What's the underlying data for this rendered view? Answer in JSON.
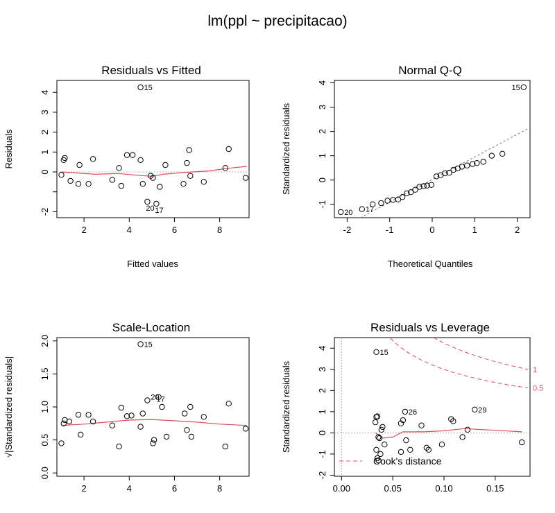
{
  "figure_title": "lm(ppl ~ precipitacao)",
  "colors": {
    "smooth": "#dc4b5a",
    "points": "#000000",
    "reference": "#b0b0b0"
  },
  "chart_data": [
    {
      "id": "rvf",
      "type": "scatter",
      "title": "Residuals vs Fitted",
      "xlabel": "Fitted values",
      "ylabel": "Residuals",
      "xlim": [
        0.8,
        9.3
      ],
      "ylim": [
        -2.3,
        4.6
      ],
      "xticks": [
        2,
        4,
        6,
        8
      ],
      "yticks": [
        -2,
        -1,
        0,
        1,
        2,
        3,
        4
      ],
      "ytick_labels": [
        "-2",
        "",
        "0",
        "1",
        "2",
        "3",
        "4"
      ],
      "ref_line": {
        "orientation": "h",
        "value": 0
      },
      "points": [
        [
          1.0,
          -0.15
        ],
        [
          1.1,
          0.6
        ],
        [
          1.15,
          0.7
        ],
        [
          1.4,
          -0.45
        ],
        [
          1.75,
          -0.6
        ],
        [
          1.8,
          0.35
        ],
        [
          2.2,
          -0.6
        ],
        [
          2.4,
          0.65
        ],
        [
          3.25,
          -0.4
        ],
        [
          3.55,
          0.2
        ],
        [
          3.65,
          -0.7
        ],
        [
          3.9,
          0.85
        ],
        [
          4.15,
          0.85
        ],
        [
          4.5,
          0.6
        ],
        [
          4.6,
          -0.6
        ],
        [
          4.8,
          -1.5
        ],
        [
          4.95,
          -0.2
        ],
        [
          5.05,
          -0.3
        ],
        [
          5.2,
          -1.6
        ],
        [
          5.35,
          -0.75
        ],
        [
          5.6,
          0.35
        ],
        [
          6.4,
          -0.6
        ],
        [
          6.55,
          0.45
        ],
        [
          6.65,
          1.1
        ],
        [
          6.7,
          -0.2
        ],
        [
          7.3,
          -0.5
        ],
        [
          8.25,
          0.2
        ],
        [
          8.4,
          1.15
        ],
        [
          9.15,
          -0.3
        ],
        [
          4.5,
          4.25
        ]
      ],
      "labels": [
        {
          "text": "15",
          "x": 4.5,
          "y": 4.25
        },
        {
          "text": "20",
          "x": 4.8,
          "y": -1.5
        },
        {
          "text": "17",
          "x": 5.2,
          "y": -1.6
        }
      ],
      "smooth": [
        [
          1.0,
          0.0
        ],
        [
          2.5,
          -0.12
        ],
        [
          3.5,
          -0.08
        ],
        [
          4.5,
          -0.18
        ],
        [
          5.0,
          -0.22
        ],
        [
          5.5,
          -0.12
        ],
        [
          6.5,
          -0.02
        ],
        [
          7.5,
          0.05
        ],
        [
          8.5,
          0.2
        ],
        [
          9.2,
          0.28
        ]
      ]
    },
    {
      "id": "qq",
      "type": "scatter",
      "title": "Normal Q-Q",
      "xlabel": "Theoretical Quantiles",
      "ylabel": "Standardized residuals",
      "xlim": [
        -2.3,
        2.3
      ],
      "ylim": [
        -1.55,
        4.1
      ],
      "xticks": [
        -2,
        -1,
        0,
        1,
        2
      ],
      "yticks": [
        -1,
        0,
        1,
        2,
        3,
        4
      ],
      "ytick_labels": [
        "-1",
        "0",
        "1",
        "2",
        "3",
        "4"
      ],
      "ref_line": {
        "orientation": "line",
        "intercept": 0.02,
        "slope": 0.93
      },
      "points": [
        [
          -2.15,
          -1.32
        ],
        [
          -1.65,
          -1.2
        ],
        [
          -1.4,
          -1.0
        ],
        [
          -1.2,
          -0.95
        ],
        [
          -1.05,
          -0.85
        ],
        [
          -0.92,
          -0.82
        ],
        [
          -0.8,
          -0.8
        ],
        [
          -0.7,
          -0.7
        ],
        [
          -0.6,
          -0.55
        ],
        [
          -0.5,
          -0.5
        ],
        [
          -0.4,
          -0.4
        ],
        [
          -0.3,
          -0.28
        ],
        [
          -0.2,
          -0.25
        ],
        [
          -0.12,
          -0.23
        ],
        [
          -0.02,
          -0.2
        ],
        [
          0.1,
          0.15
        ],
        [
          0.2,
          0.2
        ],
        [
          0.3,
          0.28
        ],
        [
          0.4,
          0.3
        ],
        [
          0.5,
          0.42
        ],
        [
          0.6,
          0.48
        ],
        [
          0.7,
          0.55
        ],
        [
          0.82,
          0.6
        ],
        [
          0.95,
          0.66
        ],
        [
          1.05,
          0.7
        ],
        [
          1.2,
          0.75
        ],
        [
          1.4,
          1.0
        ],
        [
          1.65,
          1.08
        ],
        [
          2.15,
          3.82
        ]
      ],
      "labels": [
        {
          "text": "15",
          "x": 2.15,
          "y": 3.82
        },
        {
          "text": "20",
          "x": -2.15,
          "y": -1.32
        },
        {
          "text": "17",
          "x": -1.65,
          "y": -1.2
        }
      ]
    },
    {
      "id": "sl",
      "type": "scatter",
      "title": "Scale-Location",
      "xlabel": "",
      "ylabel": "√|Standardized residuals|",
      "xlim": [
        0.8,
        9.3
      ],
      "ylim": [
        -0.05,
        2.05
      ],
      "xticks": [
        2,
        4,
        6,
        8
      ],
      "yticks": [
        0,
        0.5,
        1,
        1.5,
        2
      ],
      "ytick_labels": [
        "0.0",
        "0.5",
        "1.0",
        "1.5",
        "2.0"
      ],
      "points": [
        [
          1.0,
          0.45
        ],
        [
          1.1,
          0.75
        ],
        [
          1.15,
          0.8
        ],
        [
          1.35,
          0.78
        ],
        [
          1.75,
          0.88
        ],
        [
          1.85,
          0.58
        ],
        [
          2.2,
          0.88
        ],
        [
          2.4,
          0.78
        ],
        [
          3.25,
          0.72
        ],
        [
          3.55,
          0.4
        ],
        [
          3.65,
          0.99
        ],
        [
          3.9,
          0.86
        ],
        [
          4.1,
          0.87
        ],
        [
          4.5,
          0.7
        ],
        [
          4.6,
          0.9
        ],
        [
          4.8,
          1.1
        ],
        [
          5.05,
          0.45
        ],
        [
          5.1,
          0.5
        ],
        [
          5.3,
          1.15
        ],
        [
          5.45,
          1.0
        ],
        [
          5.65,
          0.55
        ],
        [
          6.45,
          0.9
        ],
        [
          6.55,
          0.65
        ],
        [
          6.7,
          1.0
        ],
        [
          6.75,
          0.55
        ],
        [
          7.3,
          0.85
        ],
        [
          8.25,
          0.4
        ],
        [
          8.4,
          1.05
        ],
        [
          9.15,
          0.67
        ],
        [
          4.5,
          1.95
        ]
      ],
      "labels": [
        {
          "text": "15",
          "x": 4.5,
          "y": 1.95
        },
        {
          "text": "20",
          "x": 4.8,
          "y": 1.15
        },
        {
          "text": "17",
          "x": 5.05,
          "y": 1.12
        }
      ],
      "smooth": [
        [
          1.0,
          0.72
        ],
        [
          2.0,
          0.74
        ],
        [
          3.0,
          0.77
        ],
        [
          4.0,
          0.8
        ],
        [
          5.0,
          0.81
        ],
        [
          6.0,
          0.79
        ],
        [
          7.0,
          0.77
        ],
        [
          8.0,
          0.74
        ],
        [
          9.2,
          0.72
        ]
      ]
    },
    {
      "id": "rvl",
      "type": "scatter",
      "title": "Residuals vs Leverage",
      "xlabel": "",
      "ylabel": "Standardized residuals",
      "xlim": [
        -0.007,
        0.184
      ],
      "ylim": [
        -2.05,
        4.5
      ],
      "xticks": [
        0,
        0.05,
        0.1,
        0.15
      ],
      "xtick_labels": [
        "0.00",
        "0.05",
        "0.10",
        "0.15"
      ],
      "yticks": [
        -2,
        -1,
        0,
        1,
        2,
        3,
        4
      ],
      "ytick_labels": [
        "-2",
        "-1",
        "0",
        "1",
        "2",
        "3",
        "4"
      ],
      "points": [
        [
          0.034,
          3.82
        ],
        [
          0.033,
          0.5
        ],
        [
          0.034,
          0.75
        ],
        [
          0.035,
          0.78
        ],
        [
          0.036,
          -0.2
        ],
        [
          0.037,
          -0.25
        ],
        [
          0.034,
          -0.8
        ],
        [
          0.035,
          -1.2
        ],
        [
          0.036,
          -1.3
        ],
        [
          0.038,
          -1.0
        ],
        [
          0.039,
          0.15
        ],
        [
          0.04,
          0.28
        ],
        [
          0.042,
          -0.55
        ],
        [
          0.058,
          0.45
        ],
        [
          0.06,
          0.6
        ],
        [
          0.062,
          1.0
        ],
        [
          0.063,
          -0.35
        ],
        [
          0.067,
          -0.8
        ],
        [
          0.058,
          -0.9
        ],
        [
          0.078,
          0.35
        ],
        [
          0.083,
          -0.7
        ],
        [
          0.085,
          -0.8
        ],
        [
          0.098,
          -0.55
        ],
        [
          0.107,
          0.65
        ],
        [
          0.109,
          0.55
        ],
        [
          0.118,
          -0.2
        ],
        [
          0.123,
          0.15
        ],
        [
          0.13,
          1.1
        ],
        [
          0.176,
          -0.45
        ]
      ],
      "labels": [
        {
          "text": "15",
          "x": 0.034,
          "y": 3.82
        },
        {
          "text": "26",
          "x": 0.062,
          "y": 1.0
        },
        {
          "text": "29",
          "x": 0.13,
          "y": 1.1
        }
      ],
      "smooth": [
        [
          0.033,
          0.0
        ],
        [
          0.036,
          -0.1
        ],
        [
          0.04,
          -0.25
        ],
        [
          0.05,
          -0.2
        ],
        [
          0.06,
          0.05
        ],
        [
          0.08,
          0.05
        ],
        [
          0.1,
          0.1
        ],
        [
          0.12,
          0.2
        ],
        [
          0.15,
          0.12
        ],
        [
          0.176,
          0.05
        ]
      ],
      "cook_levels": [
        0.5,
        1
      ],
      "cook_level_labels": [
        "0.5",
        "1"
      ],
      "legend": "Cook's distance"
    }
  ]
}
